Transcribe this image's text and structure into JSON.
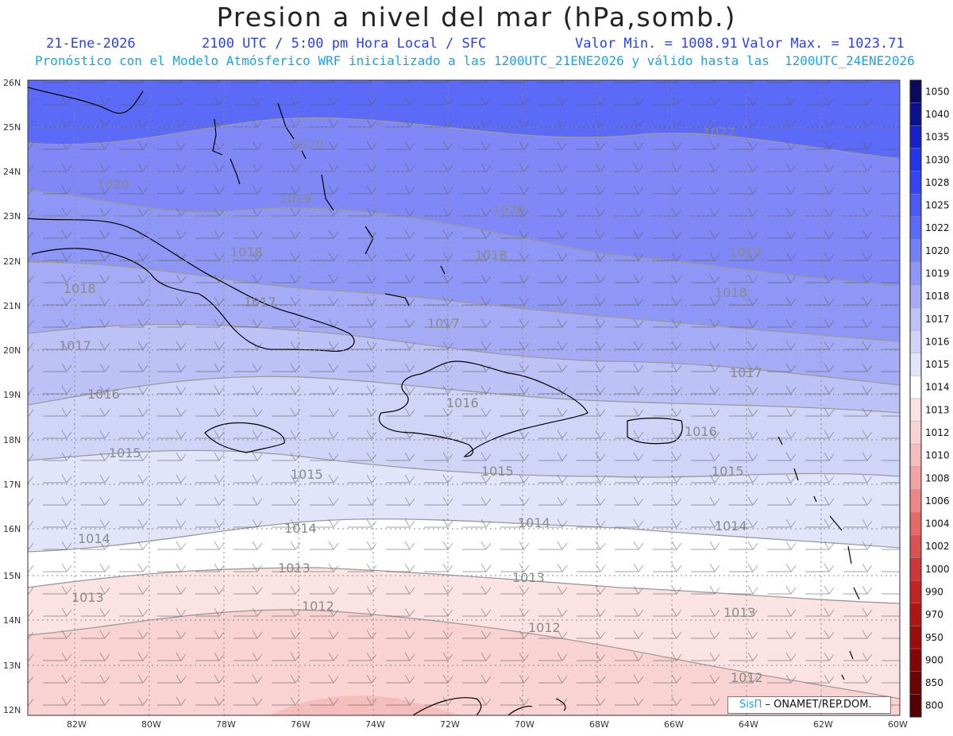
{
  "header": {
    "title": "Presion a nivel del mar (hPa,somb.)",
    "date": "21-Ene-2026",
    "time": "2100 UTC / 5:00 pm Hora Local / SFC",
    "min": "Valor Min. = 1008.91",
    "max": "Valor Max. = 1023.71",
    "forecast": "Pronóstico con el Modelo Atmósferico WRF inicializado a las 1200UTC_21ENE2026 y válido hasta las  1200UTC_24ENE2026"
  },
  "axes": {
    "lat_labels": [
      "26N",
      "25N",
      "24N",
      "23N",
      "22N",
      "21N",
      "20N",
      "19N",
      "18N",
      "17N",
      "16N",
      "15N",
      "14N",
      "13N",
      "12N"
    ],
    "lon_labels": [
      "82W",
      "80W",
      "78W",
      "76W",
      "74W",
      "72W",
      "70W",
      "68W",
      "66W",
      "64W",
      "62W",
      "60W"
    ]
  },
  "colorbar": {
    "levels": [
      "1050",
      "1040",
      "1035",
      "1030",
      "1028",
      "1025",
      "1022",
      "1020",
      "1019",
      "1018",
      "1017",
      "1016",
      "1015",
      "1014",
      "1013",
      "1012",
      "1010",
      "1008",
      "1006",
      "1004",
      "1002",
      "1000",
      "990",
      "970",
      "950",
      "900",
      "850",
      "800"
    ],
    "colors": [
      "#0a0a5c",
      "#0c118c",
      "#1520c8",
      "#2534e6",
      "#3546f0",
      "#4a5af5",
      "#5c6bf7",
      "#7580f5",
      "#8e97f5",
      "#a5acf5",
      "#bcc1f6",
      "#d0d4f7",
      "#e2e4f9",
      "#ffffff",
      "#fbe3e3",
      "#f9d2d2",
      "#f6bdbd",
      "#f2a4a4",
      "#ec8787",
      "#e46a6a",
      "#db5050",
      "#cf3838",
      "#c22424",
      "#b01515",
      "#9a0b0b",
      "#830606",
      "#6b0303",
      "#520000"
    ]
  },
  "contour_labels": [
    "1022",
    "1020",
    "1020",
    "1020",
    "1019",
    "1019",
    "1018",
    "1018",
    "1018",
    "1018",
    "1017",
    "1017",
    "1017",
    "1017",
    "1016",
    "1016",
    "1016",
    "1015",
    "1015",
    "1015",
    "1015",
    "1014",
    "1014",
    "1014",
    "1014",
    "1013",
    "1013",
    "1013",
    "1013",
    "1012",
    "1012",
    "1012"
  ],
  "credit": {
    "logo": "SisΠ",
    "text": " – ONAMET/REP.DOM."
  }
}
